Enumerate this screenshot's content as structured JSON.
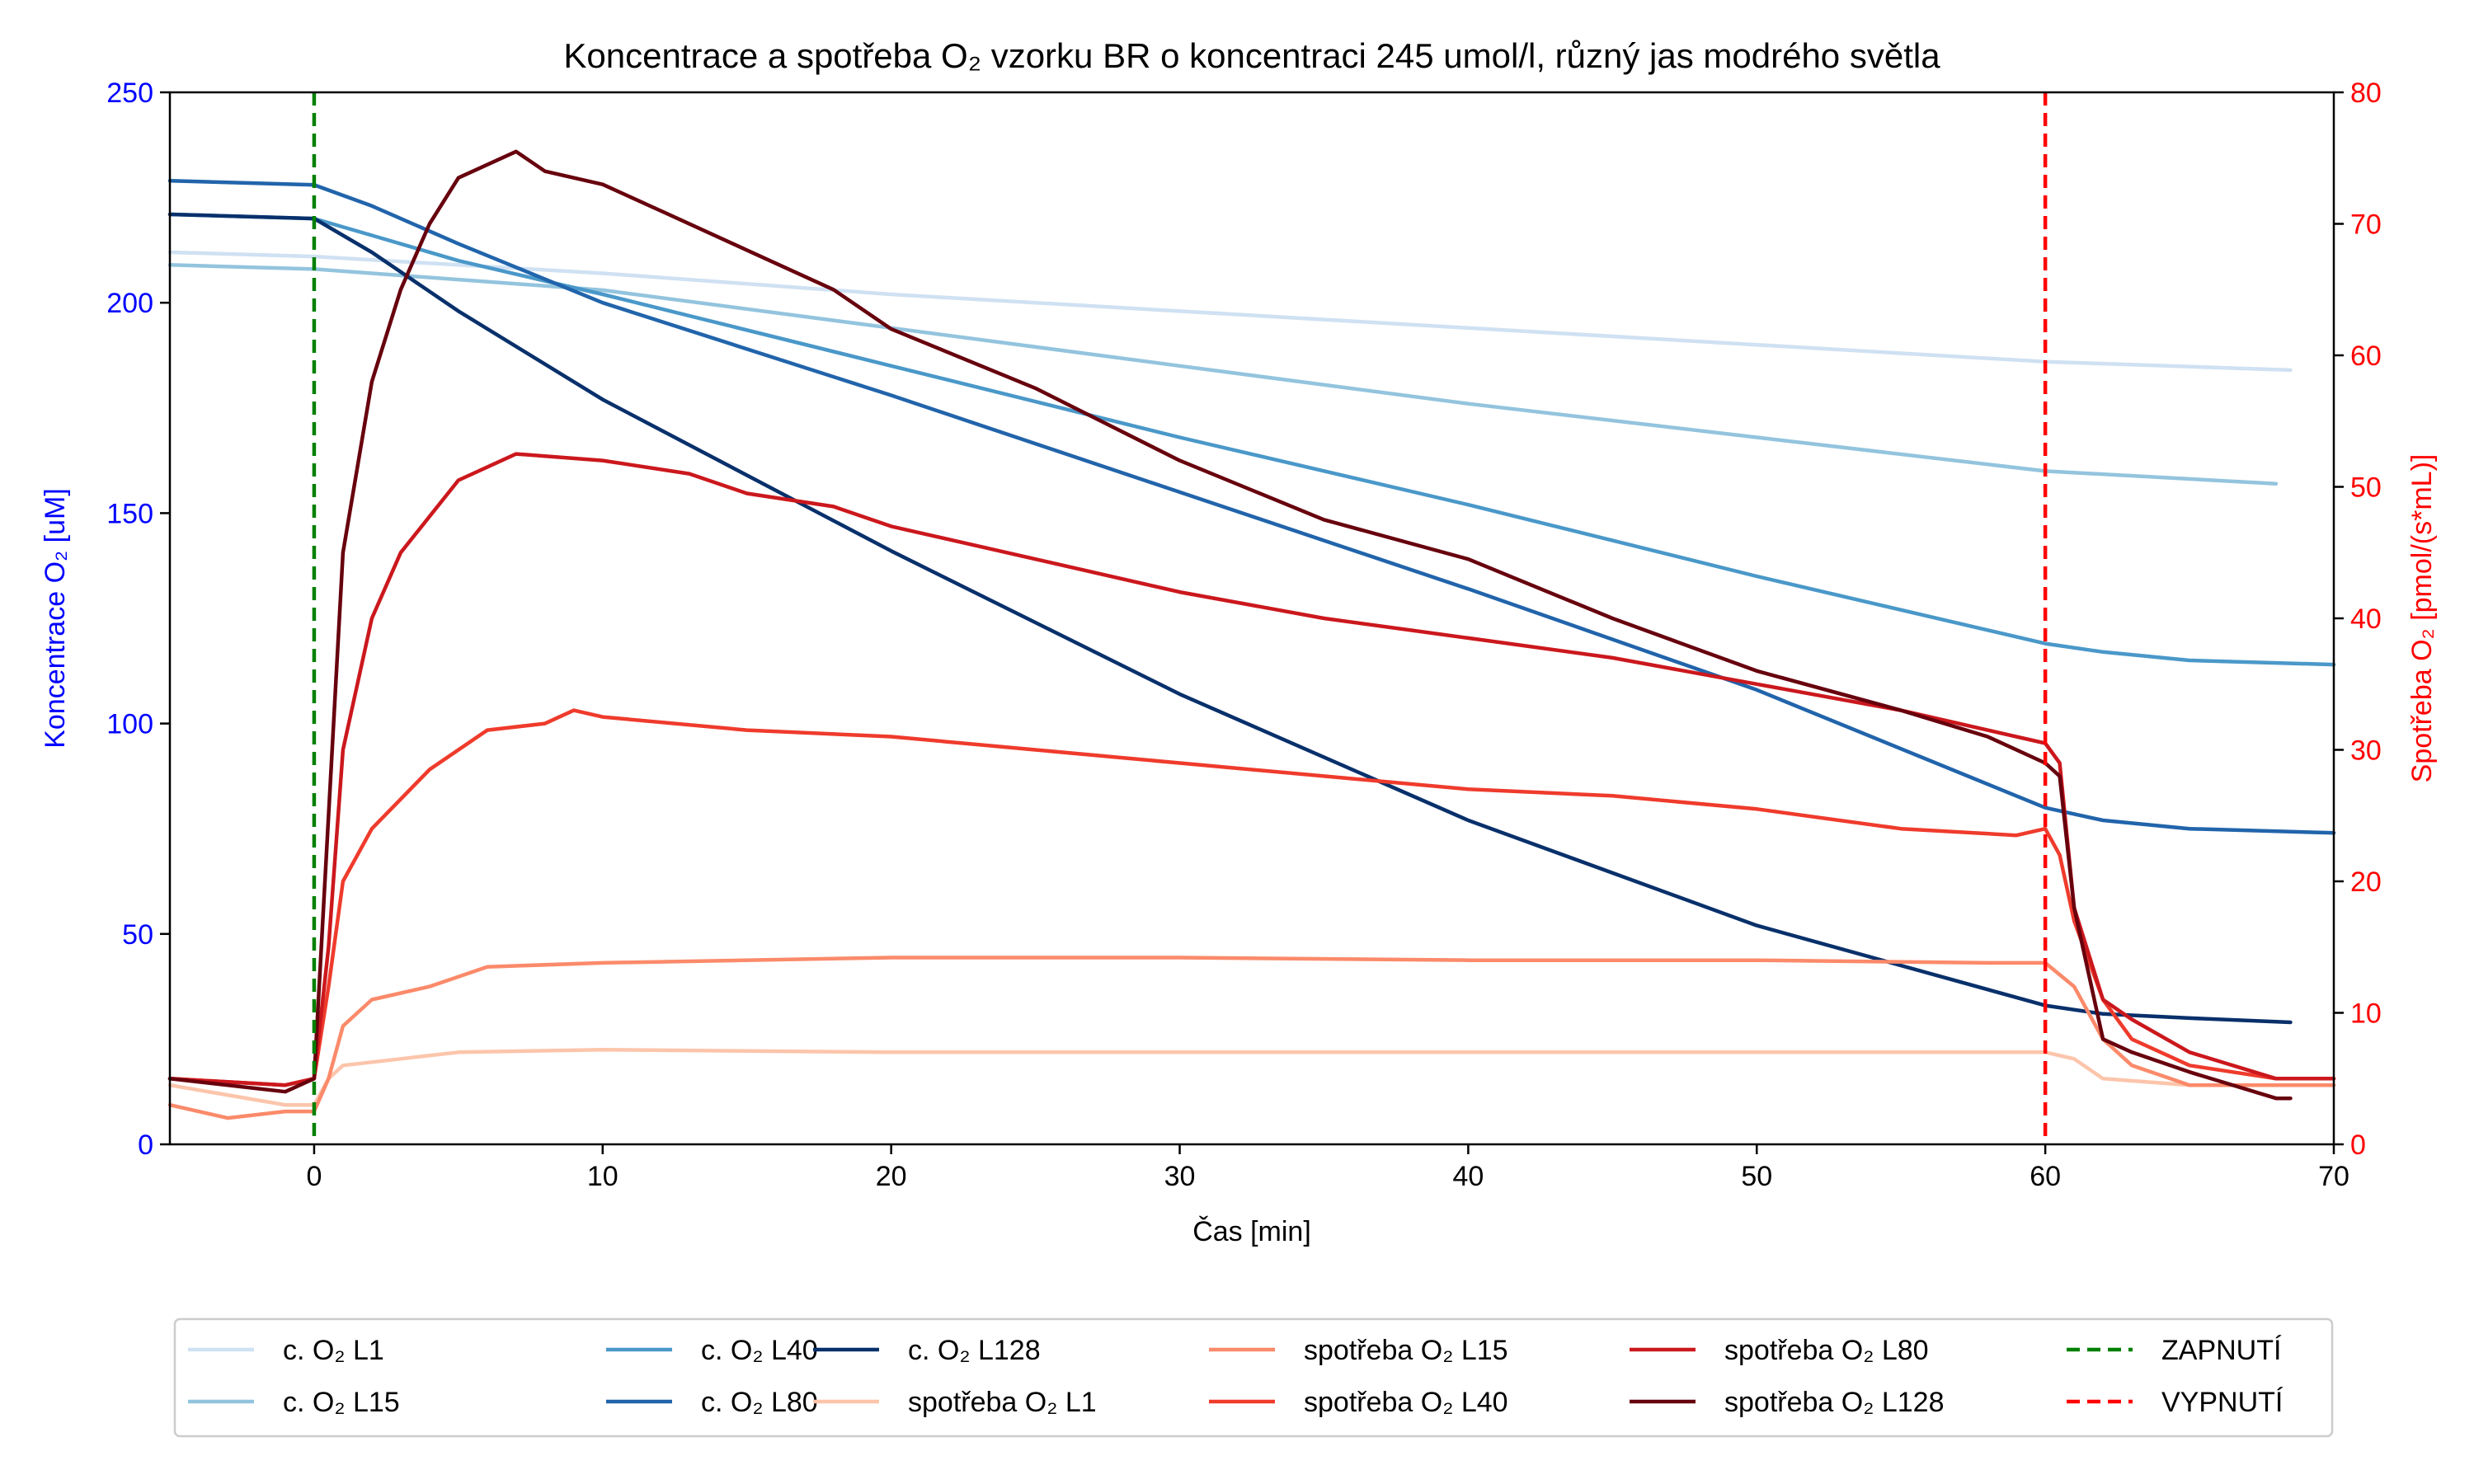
{
  "chart_data": {
    "type": "line",
    "title": "Koncentrace a spotřeba O₂ vzorku BR o koncentraci 245 umol/l, různý jas modrého světla",
    "xlabel": "Čas [min]",
    "ylabel_left": "Koncentrace O₂ [uM]",
    "ylabel_right": "Spotřeba O₂ [pmol/(s*mL)]",
    "xlim": [
      -5,
      70
    ],
    "ylim_left": [
      0,
      250
    ],
    "ylim_right": [
      0,
      80
    ],
    "x_ticks": [
      "0",
      "10",
      "20",
      "30",
      "40",
      "50",
      "60",
      "70"
    ],
    "y_left_ticks": [
      "0",
      "50",
      "100",
      "150",
      "200",
      "250"
    ],
    "y_right_ticks": [
      "0",
      "10",
      "20",
      "30",
      "40",
      "50",
      "60",
      "70",
      "80"
    ],
    "grid": false,
    "legend_placement": "bottom",
    "colors": {
      "left_axis": "#0000ff",
      "right_axis": "#ff0000",
      "zapnuti": "#008000",
      "vypnuti": "#ff0000"
    },
    "vlines": [
      {
        "name": "ZAPNUTÍ",
        "x": 0,
        "color": "#008000"
      },
      {
        "name": "VYPNUTÍ",
        "x": 60,
        "color": "#ff0000"
      }
    ],
    "series": [
      {
        "name": "c. O₂ L1",
        "axis": "left",
        "color": "#cfe1f2",
        "points": [
          [
            -5,
            212
          ],
          [
            0,
            211
          ],
          [
            10,
            207
          ],
          [
            20,
            202
          ],
          [
            30,
            198
          ],
          [
            40,
            194
          ],
          [
            50,
            190
          ],
          [
            60,
            186
          ],
          [
            68.5,
            184
          ]
        ]
      },
      {
        "name": "c. O₂ L15",
        "axis": "left",
        "color": "#93c4de",
        "points": [
          [
            -5,
            209
          ],
          [
            0,
            208
          ],
          [
            10,
            203
          ],
          [
            20,
            194
          ],
          [
            30,
            185
          ],
          [
            40,
            176
          ],
          [
            50,
            168
          ],
          [
            60,
            160
          ],
          [
            68,
            157
          ]
        ]
      },
      {
        "name": "c. O₂ L40",
        "axis": "left",
        "color": "#4a98c9",
        "points": [
          [
            -5,
            221
          ],
          [
            0,
            220
          ],
          [
            2,
            216
          ],
          [
            5,
            210
          ],
          [
            10,
            202
          ],
          [
            20,
            185
          ],
          [
            30,
            168
          ],
          [
            40,
            152
          ],
          [
            50,
            135
          ],
          [
            60,
            119
          ],
          [
            62,
            117
          ],
          [
            65,
            115
          ],
          [
            70,
            114
          ]
        ]
      },
      {
        "name": "c. O₂ L80",
        "axis": "left",
        "color": "#2164ab",
        "points": [
          [
            -5,
            229
          ],
          [
            0,
            228
          ],
          [
            2,
            223
          ],
          [
            5,
            214
          ],
          [
            10,
            200
          ],
          [
            20,
            178
          ],
          [
            30,
            155
          ],
          [
            40,
            132
          ],
          [
            50,
            108
          ],
          [
            60,
            80
          ],
          [
            62,
            77
          ],
          [
            65,
            75
          ],
          [
            70,
            74
          ]
        ]
      },
      {
        "name": "c. O₂ L128",
        "axis": "left",
        "color": "#08306b",
        "points": [
          [
            -5,
            221
          ],
          [
            0,
            220
          ],
          [
            2,
            212
          ],
          [
            5,
            198
          ],
          [
            10,
            177
          ],
          [
            20,
            141
          ],
          [
            30,
            107
          ],
          [
            40,
            77
          ],
          [
            50,
            52
          ],
          [
            60,
            33
          ],
          [
            62,
            31
          ],
          [
            65,
            30
          ],
          [
            68.5,
            29
          ]
        ]
      },
      {
        "name": "spotřeba O₂ L1",
        "axis": "right",
        "color": "#fcc5ab",
        "points": [
          [
            -5,
            4.5
          ],
          [
            -1,
            3
          ],
          [
            0,
            3
          ],
          [
            0.5,
            5
          ],
          [
            1,
            6
          ],
          [
            3,
            6.5
          ],
          [
            5,
            7
          ],
          [
            10,
            7.2
          ],
          [
            20,
            7
          ],
          [
            30,
            7
          ],
          [
            40,
            7
          ],
          [
            50,
            7
          ],
          [
            55,
            7
          ],
          [
            60,
            7
          ],
          [
            61,
            6.5
          ],
          [
            62,
            5
          ],
          [
            65,
            4.5
          ],
          [
            70,
            4.5
          ]
        ]
      },
      {
        "name": "spotřeba O₂ L15",
        "axis": "right",
        "color": "#fb8a6a",
        "points": [
          [
            -5,
            3
          ],
          [
            -3,
            2
          ],
          [
            -1,
            2.5
          ],
          [
            0,
            2.5
          ],
          [
            0.5,
            5
          ],
          [
            1,
            9
          ],
          [
            2,
            11
          ],
          [
            4,
            12
          ],
          [
            6,
            13.5
          ],
          [
            10,
            13.8
          ],
          [
            20,
            14.2
          ],
          [
            30,
            14.2
          ],
          [
            40,
            14
          ],
          [
            50,
            14
          ],
          [
            58,
            13.8
          ],
          [
            60,
            13.8
          ],
          [
            61,
            12
          ],
          [
            62,
            8
          ],
          [
            63,
            6
          ],
          [
            65,
            4.5
          ],
          [
            70,
            4.5
          ]
        ]
      },
      {
        "name": "spotřeba O₂ L40",
        "axis": "right",
        "color": "#ef3b2c",
        "points": [
          [
            -5,
            5
          ],
          [
            -1,
            4.5
          ],
          [
            0,
            5
          ],
          [
            0.5,
            12
          ],
          [
            1,
            20
          ],
          [
            2,
            24
          ],
          [
            4,
            28.5
          ],
          [
            6,
            31.5
          ],
          [
            8,
            32
          ],
          [
            9,
            33
          ],
          [
            10,
            32.5
          ],
          [
            15,
            31.5
          ],
          [
            20,
            31
          ],
          [
            25,
            30
          ],
          [
            30,
            29
          ],
          [
            35,
            28
          ],
          [
            40,
            27
          ],
          [
            45,
            26.5
          ],
          [
            50,
            25.5
          ],
          [
            55,
            24
          ],
          [
            59,
            23.5
          ],
          [
            60,
            24
          ],
          [
            60.5,
            22
          ],
          [
            61,
            17
          ],
          [
            62,
            11
          ],
          [
            63,
            8
          ],
          [
            65,
            6
          ],
          [
            68,
            5
          ],
          [
            70,
            5
          ]
        ]
      },
      {
        "name": "spotřeba O₂ L80",
        "axis": "right",
        "color": "#cb181d",
        "points": [
          [
            -5,
            5
          ],
          [
            -1,
            4.5
          ],
          [
            0,
            5
          ],
          [
            0.5,
            15
          ],
          [
            1,
            30
          ],
          [
            2,
            40
          ],
          [
            3,
            45
          ],
          [
            5,
            50.5
          ],
          [
            7,
            52.5
          ],
          [
            10,
            52
          ],
          [
            13,
            51
          ],
          [
            15,
            49.5
          ],
          [
            18,
            48.5
          ],
          [
            20,
            47
          ],
          [
            25,
            44.5
          ],
          [
            30,
            42
          ],
          [
            35,
            40
          ],
          [
            40,
            38.5
          ],
          [
            45,
            37
          ],
          [
            50,
            35
          ],
          [
            55,
            33
          ],
          [
            58,
            31.5
          ],
          [
            60,
            30.5
          ],
          [
            60.5,
            29
          ],
          [
            61,
            18
          ],
          [
            62,
            11
          ],
          [
            63,
            9.5
          ],
          [
            65,
            7
          ],
          [
            68,
            5
          ],
          [
            70,
            5
          ]
        ]
      },
      {
        "name": "spotřeba O₂ L128",
        "axis": "right",
        "color": "#67000d",
        "points": [
          [
            -5,
            5
          ],
          [
            -1,
            4
          ],
          [
            0,
            5
          ],
          [
            0.5,
            25
          ],
          [
            1,
            45
          ],
          [
            2,
            58
          ],
          [
            3,
            65
          ],
          [
            4,
            70
          ],
          [
            5,
            73.5
          ],
          [
            7,
            75.5
          ],
          [
            8,
            74
          ],
          [
            10,
            73
          ],
          [
            12,
            71
          ],
          [
            15,
            68
          ],
          [
            18,
            65
          ],
          [
            20,
            62
          ],
          [
            25,
            57.5
          ],
          [
            30,
            52
          ],
          [
            35,
            47.5
          ],
          [
            40,
            44.5
          ],
          [
            45,
            40
          ],
          [
            50,
            36
          ],
          [
            55,
            33
          ],
          [
            58,
            31
          ],
          [
            60,
            29
          ],
          [
            60.5,
            28
          ],
          [
            61,
            18
          ],
          [
            62,
            8
          ],
          [
            63,
            7
          ],
          [
            65,
            5.5
          ],
          [
            68,
            3.5
          ],
          [
            68.5,
            3.5
          ]
        ]
      }
    ]
  }
}
